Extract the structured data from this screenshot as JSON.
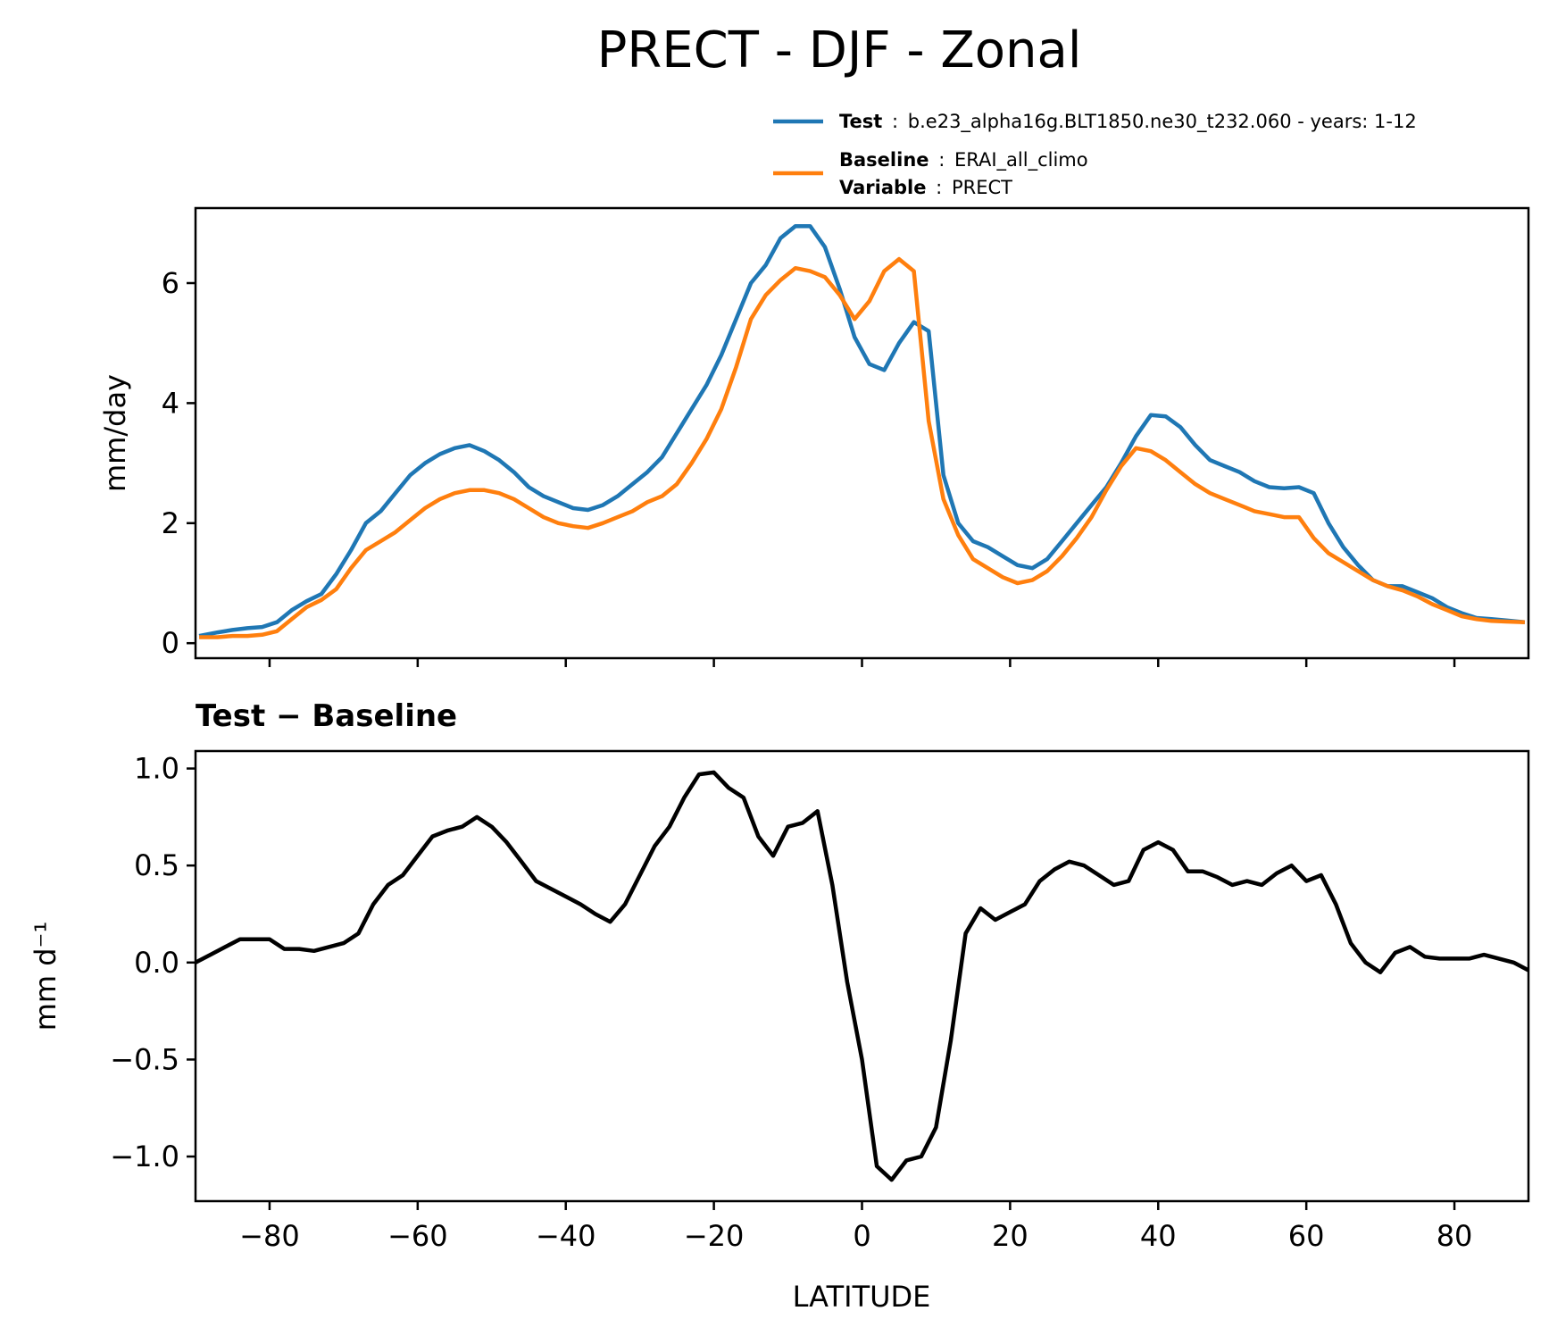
{
  "title": "PRECT - DJF - Zonal",
  "legend": {
    "test": {
      "label": "Test",
      "sep": ":",
      "value": "b.e23_alpha16g.BLT1850.ne30_t232.060 - years: 1-12",
      "color": "#1f77b4"
    },
    "baseline": {
      "label": "Baseline",
      "sep": ":",
      "value": "ERAI_all_climo",
      "color": "#ff7f0e"
    },
    "variable": {
      "label": "Variable",
      "sep": ":",
      "value": "PRECT"
    }
  },
  "chart_data": [
    {
      "type": "line",
      "title": "",
      "ylabel": "mm/day",
      "xlabel": "",
      "xlim": [
        -90,
        90
      ],
      "ylim": [
        -0.25,
        7.25
      ],
      "yticks": [
        0,
        2,
        4,
        6
      ],
      "ytick_labels": [
        "0",
        "2",
        "4",
        "6"
      ],
      "xticks": [
        -80,
        -60,
        -40,
        -20,
        0,
        20,
        40,
        60,
        80
      ],
      "series": [
        {
          "name": "Test",
          "color": "#1f77b4",
          "x": [
            -89.5,
            -87,
            -85,
            -83,
            -81,
            -79,
            -77,
            -75,
            -73,
            -71,
            -69,
            -67,
            -65,
            -63,
            -61,
            -59,
            -57,
            -55,
            -53,
            -51,
            -49,
            -47,
            -45,
            -43,
            -41,
            -39,
            -37,
            -35,
            -33,
            -31,
            -29,
            -27,
            -25,
            -23,
            -21,
            -19,
            -17,
            -15,
            -13,
            -11,
            -9,
            -7,
            -5,
            -3,
            -1,
            1,
            3,
            5,
            7,
            9,
            11,
            13,
            15,
            17,
            19,
            21,
            23,
            25,
            27,
            29,
            31,
            33,
            35,
            37,
            39,
            41,
            43,
            45,
            47,
            49,
            51,
            53,
            55,
            57,
            59,
            61,
            63,
            65,
            67,
            69,
            71,
            73,
            75,
            77,
            79,
            81,
            83,
            85,
            87,
            89.5
          ],
          "values": [
            0.12,
            0.18,
            0.22,
            0.25,
            0.27,
            0.35,
            0.55,
            0.7,
            0.82,
            1.15,
            1.55,
            2.0,
            2.2,
            2.5,
            2.8,
            3.0,
            3.15,
            3.25,
            3.3,
            3.2,
            3.05,
            2.85,
            2.6,
            2.45,
            2.35,
            2.25,
            2.22,
            2.3,
            2.45,
            2.65,
            2.85,
            3.1,
            3.5,
            3.9,
            4.3,
            4.8,
            5.4,
            6.0,
            6.3,
            6.75,
            6.95,
            6.95,
            6.6,
            5.9,
            5.1,
            4.65,
            4.55,
            5.0,
            5.35,
            5.2,
            2.8,
            2.0,
            1.7,
            1.6,
            1.45,
            1.3,
            1.25,
            1.4,
            1.7,
            2.0,
            2.3,
            2.6,
            3.0,
            3.45,
            3.8,
            3.78,
            3.6,
            3.3,
            3.05,
            2.95,
            2.85,
            2.7,
            2.6,
            2.58,
            2.6,
            2.5,
            2.0,
            1.6,
            1.3,
            1.05,
            0.95,
            0.95,
            0.85,
            0.75,
            0.6,
            0.5,
            0.42,
            0.4,
            0.38,
            0.35
          ]
        },
        {
          "name": "Baseline",
          "color": "#ff7f0e",
          "x": [
            -89.5,
            -87,
            -85,
            -83,
            -81,
            -79,
            -77,
            -75,
            -73,
            -71,
            -69,
            -67,
            -65,
            -63,
            -61,
            -59,
            -57,
            -55,
            -53,
            -51,
            -49,
            -47,
            -45,
            -43,
            -41,
            -39,
            -37,
            -35,
            -33,
            -31,
            -29,
            -27,
            -25,
            -23,
            -21,
            -19,
            -17,
            -15,
            -13,
            -11,
            -9,
            -7,
            -5,
            -3,
            -1,
            1,
            3,
            5,
            7,
            9,
            11,
            13,
            15,
            17,
            19,
            21,
            23,
            25,
            27,
            29,
            31,
            33,
            35,
            37,
            39,
            41,
            43,
            45,
            47,
            49,
            51,
            53,
            55,
            57,
            59,
            61,
            63,
            65,
            67,
            69,
            71,
            73,
            75,
            77,
            79,
            81,
            83,
            85,
            87,
            89.5
          ],
          "values": [
            0.1,
            0.1,
            0.12,
            0.12,
            0.14,
            0.2,
            0.4,
            0.6,
            0.72,
            0.9,
            1.25,
            1.55,
            1.7,
            1.85,
            2.05,
            2.25,
            2.4,
            2.5,
            2.55,
            2.55,
            2.5,
            2.4,
            2.25,
            2.1,
            2.0,
            1.95,
            1.92,
            2.0,
            2.1,
            2.2,
            2.35,
            2.45,
            2.65,
            3.0,
            3.4,
            3.9,
            4.6,
            5.4,
            5.8,
            6.05,
            6.25,
            6.2,
            6.1,
            5.8,
            5.4,
            5.7,
            6.2,
            6.4,
            6.2,
            3.7,
            2.4,
            1.8,
            1.4,
            1.25,
            1.1,
            1.0,
            1.05,
            1.2,
            1.45,
            1.75,
            2.1,
            2.55,
            2.95,
            3.25,
            3.2,
            3.05,
            2.85,
            2.65,
            2.5,
            2.4,
            2.3,
            2.2,
            2.15,
            2.1,
            2.1,
            1.75,
            1.5,
            1.35,
            1.2,
            1.05,
            0.95,
            0.88,
            0.78,
            0.65,
            0.55,
            0.45,
            0.4,
            0.37,
            0.36,
            0.35
          ]
        }
      ]
    },
    {
      "type": "line",
      "title": "Test − Baseline",
      "ylabel": "mm d⁻¹",
      "xlabel": "LATITUDE",
      "xlim": [
        -90,
        90
      ],
      "ylim": [
        -1.23,
        1.09
      ],
      "yticks": [
        -1.0,
        -0.5,
        0.0,
        0.5,
        1.0
      ],
      "ytick_labels": [
        "−1.0",
        "−0.5",
        "0.0",
        "0.5",
        "1.0"
      ],
      "xticks": [
        -80,
        -60,
        -40,
        -20,
        0,
        20,
        40,
        60,
        80
      ],
      "xtick_labels": [
        "−80",
        "−60",
        "−40",
        "−20",
        "0",
        "20",
        "40",
        "60",
        "80"
      ],
      "series": [
        {
          "name": "Test − Baseline",
          "color": "#000000",
          "x": [
            -90,
            -88,
            -86,
            -84,
            -82,
            -80,
            -78,
            -76,
            -74,
            -72,
            -70,
            -68,
            -66,
            -64,
            -62,
            -60,
            -58,
            -56,
            -54,
            -52,
            -50,
            -48,
            -46,
            -44,
            -42,
            -40,
            -38,
            -36,
            -34,
            -32,
            -30,
            -28,
            -26,
            -24,
            -22,
            -20,
            -18,
            -16,
            -14,
            -12,
            -10,
            -8,
            -6,
            -4,
            -2,
            0,
            2,
            4,
            6,
            8,
            10,
            12,
            14,
            16,
            18,
            20,
            22,
            24,
            26,
            28,
            30,
            32,
            34,
            36,
            38,
            40,
            42,
            44,
            46,
            48,
            50,
            52,
            54,
            56,
            58,
            60,
            62,
            64,
            66,
            68,
            70,
            72,
            74,
            76,
            78,
            80,
            82,
            84,
            86,
            88,
            90
          ],
          "values": [
            0.0,
            0.04,
            0.08,
            0.12,
            0.12,
            0.12,
            0.07,
            0.07,
            0.06,
            0.08,
            0.1,
            0.15,
            0.3,
            0.4,
            0.45,
            0.55,
            0.65,
            0.68,
            0.7,
            0.75,
            0.7,
            0.62,
            0.52,
            0.42,
            0.38,
            0.34,
            0.3,
            0.25,
            0.21,
            0.3,
            0.45,
            0.6,
            0.7,
            0.85,
            0.97,
            0.98,
            0.9,
            0.85,
            0.65,
            0.55,
            0.7,
            0.72,
            0.78,
            0.4,
            -0.1,
            -0.5,
            -1.05,
            -1.12,
            -1.02,
            -1.0,
            -0.85,
            -0.4,
            0.15,
            0.28,
            0.22,
            0.26,
            0.3,
            0.42,
            0.48,
            0.52,
            0.5,
            0.45,
            0.4,
            0.42,
            0.58,
            0.62,
            0.58,
            0.47,
            0.47,
            0.44,
            0.4,
            0.42,
            0.4,
            0.46,
            0.5,
            0.42,
            0.45,
            0.3,
            0.1,
            0.0,
            -0.05,
            0.05,
            0.08,
            0.03,
            0.02,
            0.02,
            0.02,
            0.04,
            0.02,
            0.0,
            -0.04
          ]
        }
      ]
    }
  ]
}
